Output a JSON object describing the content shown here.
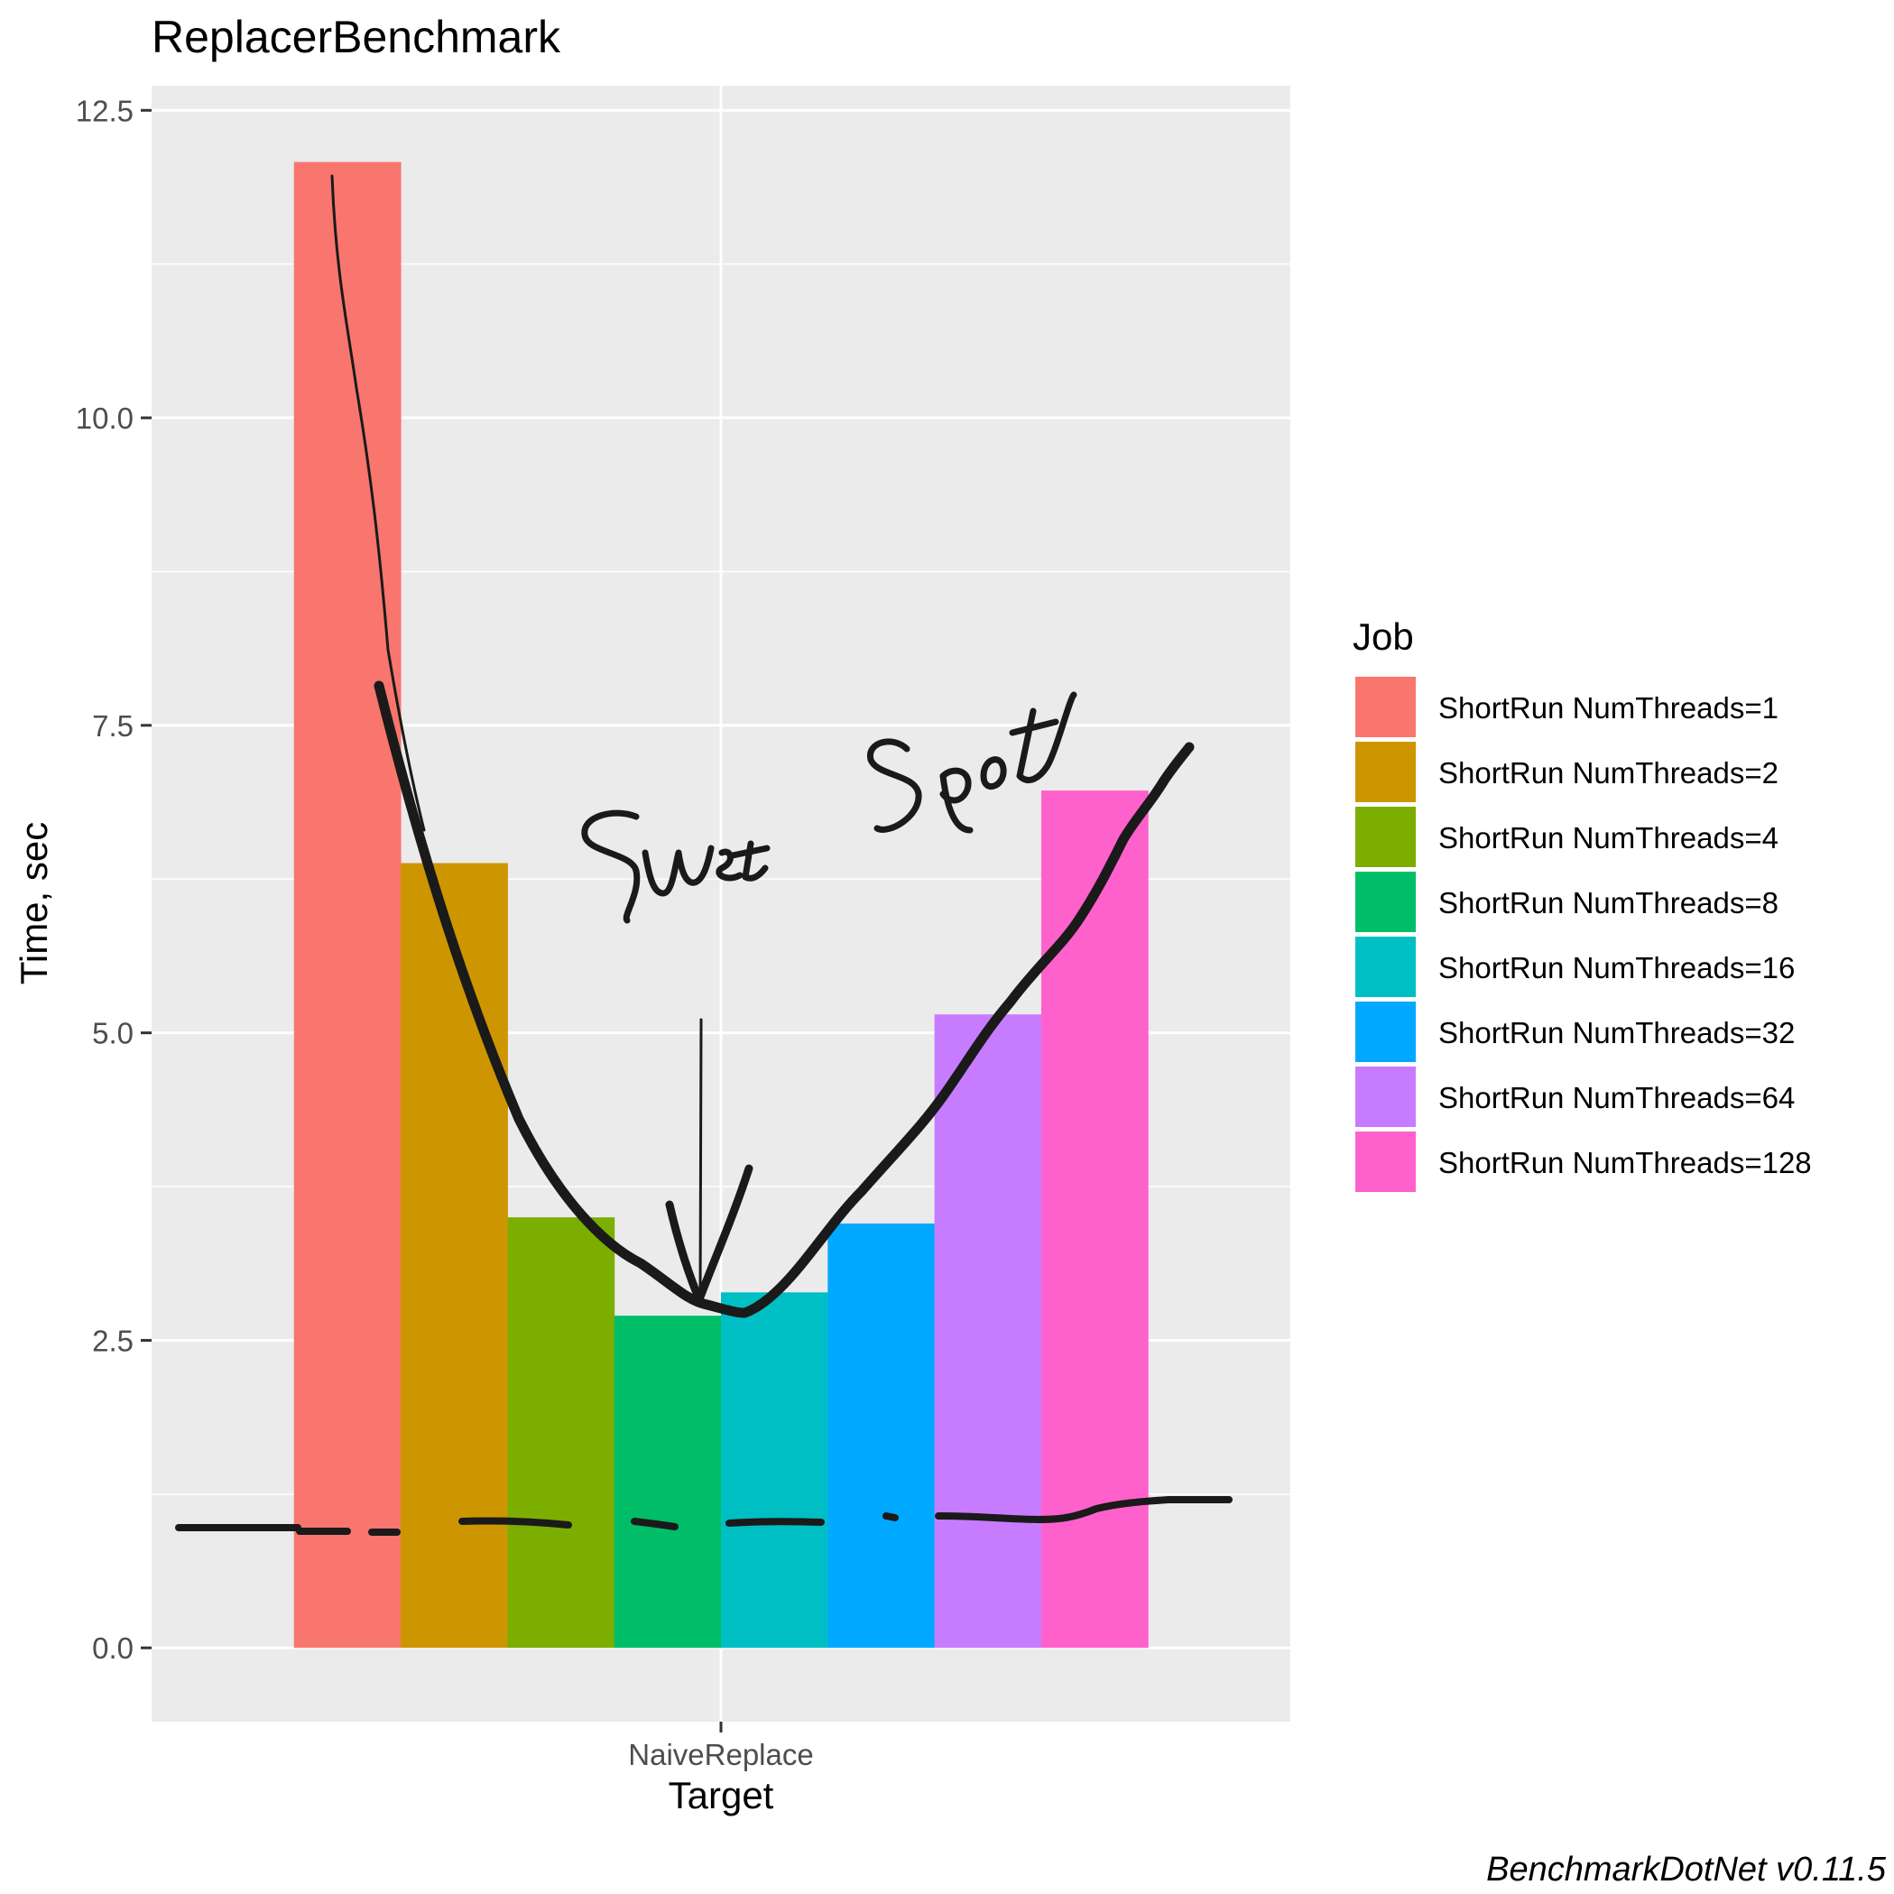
{
  "chart_data": {
    "type": "bar",
    "title": "ReplacerBenchmark",
    "xlabel": "Target",
    "ylabel": "Time, sec",
    "categories": [
      "NaiveReplace"
    ],
    "ylim": [
      -0.6,
      12.7
    ],
    "yticks": [
      0.0,
      2.5,
      5.0,
      7.5,
      10.0,
      12.5
    ],
    "ytick_labels": [
      "0.0",
      "2.5",
      "5.0",
      "7.5",
      "10.0",
      "12.5"
    ],
    "grid": true,
    "legend": {
      "title": "Job",
      "position": "right"
    },
    "series": [
      {
        "name": "ShortRun NumThreads=1",
        "values": [
          12.08
        ],
        "color": "#F8766D"
      },
      {
        "name": "ShortRun NumThreads=2",
        "values": [
          6.38
        ],
        "color": "#CD9600"
      },
      {
        "name": "ShortRun NumThreads=4",
        "values": [
          3.5
        ],
        "color": "#7CAE00"
      },
      {
        "name": "ShortRun NumThreads=8",
        "values": [
          2.7
        ],
        "color": "#00BE67"
      },
      {
        "name": "ShortRun NumThreads=16",
        "values": [
          2.89
        ],
        "color": "#00BFC4"
      },
      {
        "name": "ShortRun NumThreads=32",
        "values": [
          3.45
        ],
        "color": "#00A9FF"
      },
      {
        "name": "ShortRun NumThreads=64",
        "values": [
          5.15
        ],
        "color": "#C77CFF"
      },
      {
        "name": "ShortRun NumThreads=128",
        "values": [
          6.97
        ],
        "color": "#FF61CC"
      }
    ],
    "annotation": "Sweet Spot",
    "footer": "BenchmarkDotNet v0.11.5"
  }
}
